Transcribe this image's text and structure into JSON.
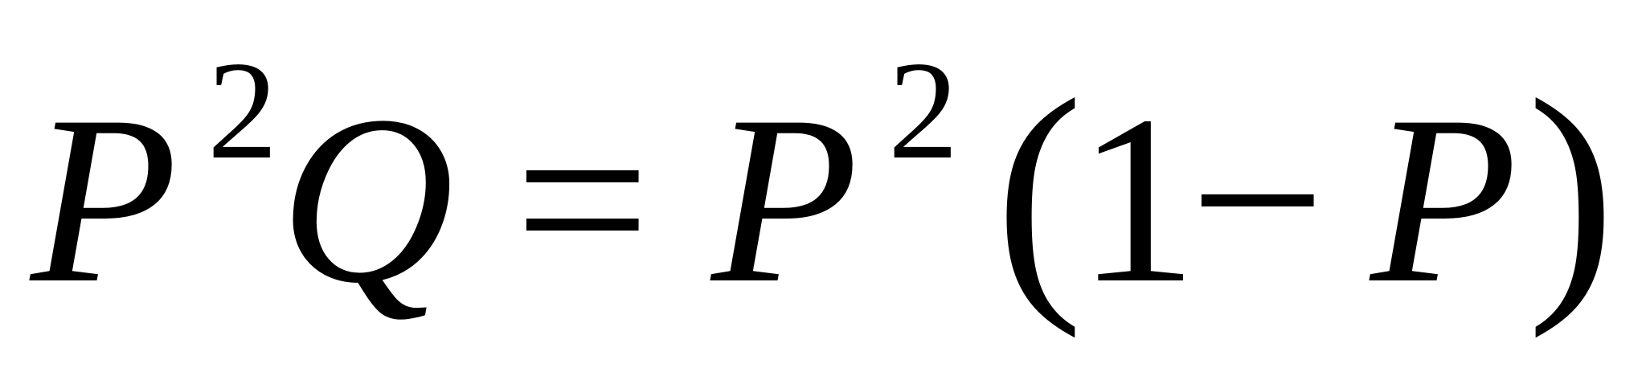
{
  "equation": {
    "lhs": {
      "base1": "P",
      "exp1": "2",
      "factor": "Q"
    },
    "relation": "=",
    "rhs": {
      "base": "P",
      "exp": "2",
      "open_paren": "(",
      "one": "1",
      "minus": "−",
      "var": "P",
      "close_paren": ")"
    }
  }
}
